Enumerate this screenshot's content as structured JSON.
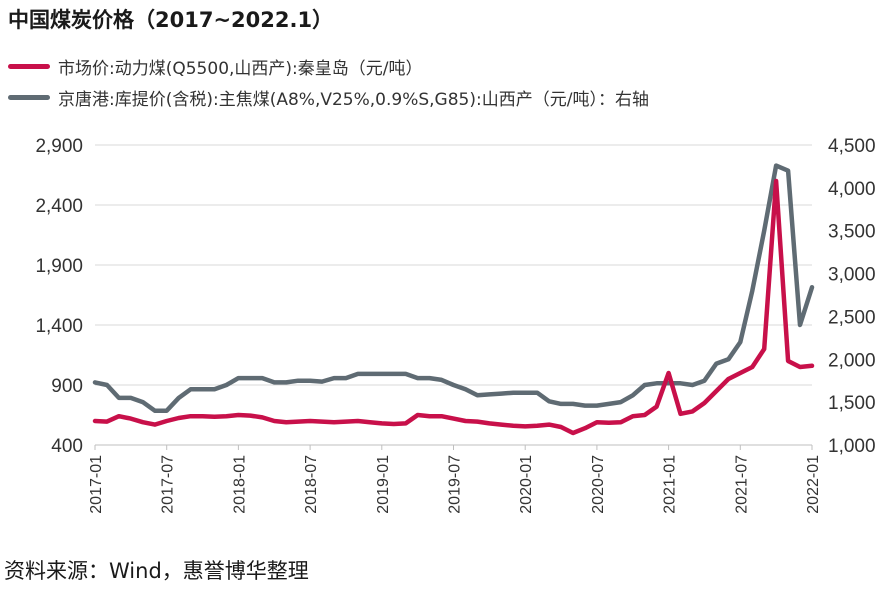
{
  "title": "中国煤炭价格（2017~2022.1）",
  "source": "资料来源：Wind，惠誉博华整理",
  "colors": {
    "series1": "#c8104a",
    "series2": "#5f6b73",
    "grid": "#d9d9d9",
    "text": "#333333"
  },
  "chart_data": {
    "type": "line",
    "legend": [
      {
        "label": "市场价:动力煤(Q5500,山西产):秦皇岛（元/吨）",
        "axis": "left"
      },
      {
        "label": "京唐港:库提价(含税):主焦煤(A8%,V25%,0.9%S,G85):山西产（元/吨）：右轴",
        "axis": "right"
      }
    ],
    "x_tick_labels": [
      "2017-01",
      "2017-07",
      "2018-01",
      "2018-07",
      "2019-01",
      "2019-07",
      "2020-01",
      "2020-07",
      "2021-01",
      "2021-07",
      "2022-01"
    ],
    "x_range": [
      "2017-01",
      "2022-01"
    ],
    "y_left": {
      "ticks": [
        "400",
        "900",
        "1,400",
        "1,900",
        "2,400",
        "2,900"
      ],
      "range": [
        400,
        2900
      ]
    },
    "y_right": {
      "ticks": [
        "1,000",
        "1,500",
        "2,000",
        "2,500",
        "3,000",
        "3,500",
        "4,000",
        "4,500"
      ],
      "range": [
        1000,
        4500
      ]
    },
    "grid": true,
    "series": [
      {
        "name": "市场价:动力煤(Q5500,山西产):秦皇岛（元/吨）",
        "axis": "left",
        "points": [
          [
            "2017-01",
            600
          ],
          [
            "2017-02",
            595
          ],
          [
            "2017-03",
            640
          ],
          [
            "2017-04",
            620
          ],
          [
            "2017-05",
            590
          ],
          [
            "2017-06",
            570
          ],
          [
            "2017-07",
            600
          ],
          [
            "2017-08",
            625
          ],
          [
            "2017-09",
            640
          ],
          [
            "2017-10",
            640
          ],
          [
            "2017-11",
            635
          ],
          [
            "2017-12",
            640
          ],
          [
            "2018-01",
            650
          ],
          [
            "2018-02",
            645
          ],
          [
            "2018-03",
            630
          ],
          [
            "2018-04",
            600
          ],
          [
            "2018-05",
            590
          ],
          [
            "2018-06",
            595
          ],
          [
            "2018-07",
            600
          ],
          [
            "2018-08",
            595
          ],
          [
            "2018-09",
            590
          ],
          [
            "2018-10",
            595
          ],
          [
            "2018-11",
            600
          ],
          [
            "2018-12",
            590
          ],
          [
            "2019-01",
            580
          ],
          [
            "2019-02",
            575
          ],
          [
            "2019-03",
            580
          ],
          [
            "2019-04",
            650
          ],
          [
            "2019-05",
            640
          ],
          [
            "2019-06",
            640
          ],
          [
            "2019-07",
            620
          ],
          [
            "2019-08",
            600
          ],
          [
            "2019-09",
            595
          ],
          [
            "2019-10",
            580
          ],
          [
            "2019-11",
            570
          ],
          [
            "2019-12",
            560
          ],
          [
            "2020-01",
            555
          ],
          [
            "2020-02",
            560
          ],
          [
            "2020-03",
            570
          ],
          [
            "2020-04",
            550
          ],
          [
            "2020-05",
            500
          ],
          [
            "2020-06",
            540
          ],
          [
            "2020-07",
            590
          ],
          [
            "2020-08",
            585
          ],
          [
            "2020-09",
            590
          ],
          [
            "2020-10",
            640
          ],
          [
            "2020-11",
            650
          ],
          [
            "2020-12",
            720
          ],
          [
            "2021-01",
            1000
          ],
          [
            "2021-02",
            660
          ],
          [
            "2021-03",
            680
          ],
          [
            "2021-04",
            750
          ],
          [
            "2021-05",
            850
          ],
          [
            "2021-06",
            950
          ],
          [
            "2021-07",
            1000
          ],
          [
            "2021-08",
            1050
          ],
          [
            "2021-09",
            1200
          ],
          [
            "2021-10",
            2600
          ],
          [
            "2021-11",
            1100
          ],
          [
            "2021-12",
            1050
          ],
          [
            "2022-01",
            1060
          ]
        ]
      },
      {
        "name": "京唐港:库提价(含税):主焦煤(A8%,V25%,0.9%S,G85):山西产（元/吨）：右轴",
        "axis": "right",
        "points": [
          [
            "2017-01",
            1730
          ],
          [
            "2017-02",
            1700
          ],
          [
            "2017-03",
            1550
          ],
          [
            "2017-04",
            1550
          ],
          [
            "2017-05",
            1500
          ],
          [
            "2017-06",
            1400
          ],
          [
            "2017-07",
            1400
          ],
          [
            "2017-08",
            1550
          ],
          [
            "2017-09",
            1650
          ],
          [
            "2017-10",
            1650
          ],
          [
            "2017-11",
            1650
          ],
          [
            "2017-12",
            1700
          ],
          [
            "2018-01",
            1780
          ],
          [
            "2018-02",
            1780
          ],
          [
            "2018-03",
            1780
          ],
          [
            "2018-04",
            1730
          ],
          [
            "2018-05",
            1730
          ],
          [
            "2018-06",
            1750
          ],
          [
            "2018-07",
            1750
          ],
          [
            "2018-08",
            1740
          ],
          [
            "2018-09",
            1780
          ],
          [
            "2018-10",
            1780
          ],
          [
            "2018-11",
            1830
          ],
          [
            "2018-12",
            1830
          ],
          [
            "2019-01",
            1830
          ],
          [
            "2019-02",
            1830
          ],
          [
            "2019-03",
            1830
          ],
          [
            "2019-04",
            1780
          ],
          [
            "2019-05",
            1780
          ],
          [
            "2019-06",
            1760
          ],
          [
            "2019-07",
            1700
          ],
          [
            "2019-08",
            1650
          ],
          [
            "2019-09",
            1580
          ],
          [
            "2019-10",
            1590
          ],
          [
            "2019-11",
            1600
          ],
          [
            "2019-12",
            1610
          ],
          [
            "2020-01",
            1610
          ],
          [
            "2020-02",
            1610
          ],
          [
            "2020-03",
            1510
          ],
          [
            "2020-04",
            1480
          ],
          [
            "2020-05",
            1480
          ],
          [
            "2020-06",
            1460
          ],
          [
            "2020-07",
            1460
          ],
          [
            "2020-08",
            1480
          ],
          [
            "2020-09",
            1500
          ],
          [
            "2020-10",
            1580
          ],
          [
            "2020-11",
            1700
          ],
          [
            "2020-12",
            1720
          ],
          [
            "2021-01",
            1720
          ],
          [
            "2021-02",
            1720
          ],
          [
            "2021-03",
            1700
          ],
          [
            "2021-04",
            1750
          ],
          [
            "2021-05",
            1950
          ],
          [
            "2021-06",
            2000
          ],
          [
            "2021-07",
            2200
          ],
          [
            "2021-08",
            2800
          ],
          [
            "2021-09",
            3500
          ],
          [
            "2021-10",
            4260
          ],
          [
            "2021-11",
            4200
          ],
          [
            "2021-12",
            2400
          ],
          [
            "2022-01",
            2840
          ]
        ]
      }
    ]
  }
}
